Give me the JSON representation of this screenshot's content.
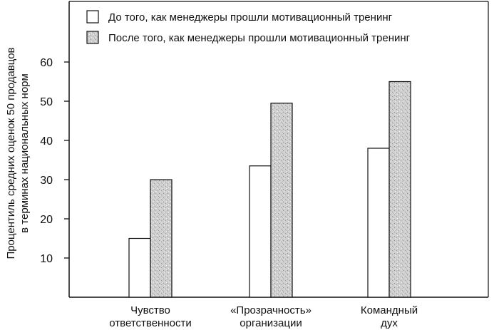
{
  "chart_data": {
    "type": "bar",
    "categories": [
      [
        "Чувство",
        "ответственности"
      ],
      [
        "«Прозрачность»",
        "организации"
      ],
      [
        "Командный",
        "дух"
      ]
    ],
    "series": [
      {
        "name": "До того, как менеджеры прошли мотивационный тренинг",
        "values": [
          15,
          33.5,
          38
        ],
        "fill": "#ffffff"
      },
      {
        "name": "После того, как менеджеры прошли мотивационный тренинг",
        "values": [
          30,
          49.5,
          55
        ],
        "fill": "#c9c9c9"
      }
    ],
    "ylabel": [
      "Процентиль средних оценок 50 продавцов",
      "в терминах национальных норм"
    ],
    "ylim": [
      0,
      70
    ],
    "yticks": [
      10,
      20,
      30,
      40,
      50,
      60
    ],
    "legend_position": "top",
    "grid": false
  }
}
